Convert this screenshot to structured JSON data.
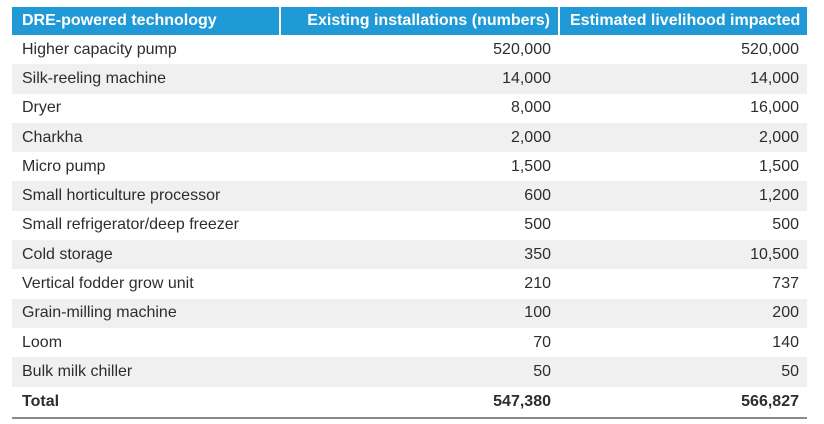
{
  "table": {
    "headers": [
      "DRE-powered technology",
      "Existing installations (numbers)",
      "Estimated livelihood impacted"
    ],
    "rows": [
      [
        "Higher capacity pump",
        "520,000",
        "520,000"
      ],
      [
        "Silk-reeling machine",
        "14,000",
        "14,000"
      ],
      [
        "Dryer",
        "8,000",
        "16,000"
      ],
      [
        "Charkha",
        "2,000",
        "2,000"
      ],
      [
        "Micro pump",
        "1,500",
        "1,500"
      ],
      [
        "Small horticulture processor",
        "600",
        "1,200"
      ],
      [
        "Small refrigerator/deep freezer",
        "500",
        "500"
      ],
      [
        "Cold storage",
        "350",
        "10,500"
      ],
      [
        "Vertical fodder grow unit",
        "210",
        "737"
      ],
      [
        "Grain-milling machine",
        "100",
        "200"
      ],
      [
        "Loom",
        "70",
        "140"
      ],
      [
        "Bulk milk chiller",
        "50",
        "50"
      ]
    ],
    "total": [
      "Total",
      "547,380",
      "566,827"
    ]
  },
  "colors": {
    "header_bg": "#1f9ad6",
    "header_text": "#ffffff",
    "stripe_bg": "#f0f0f0",
    "rule": "#8a8a8a"
  }
}
